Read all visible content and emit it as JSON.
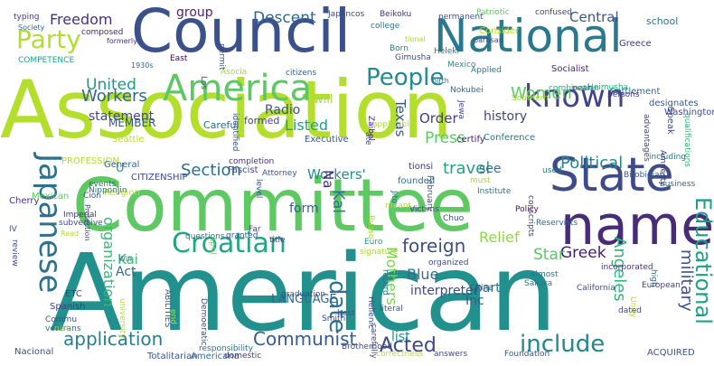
{
  "cloud": {
    "words": [
      {
        "text": "Association",
        "color": "#b4de2c"
      },
      {
        "text": "American",
        "color": "#22908c"
      },
      {
        "text": "Committee",
        "color": "#5ec962"
      },
      {
        "text": "Council",
        "color": "#3b518b"
      },
      {
        "text": "National",
        "color": "#2a788e"
      },
      {
        "text": "State",
        "color": "#3e4a89"
      },
      {
        "text": "name",
        "color": "#472c7a"
      },
      {
        "text": "America",
        "color": "#5cc863"
      },
      {
        "text": "known",
        "color": "#414487"
      },
      {
        "text": "Croatian",
        "color": "#21a685"
      },
      {
        "text": "Japanese",
        "color": "#2c718e"
      },
      {
        "text": "Party",
        "color": "#b0dd2f"
      },
      {
        "text": "People",
        "color": "#23898e"
      },
      {
        "text": "date",
        "color": "#2c728e"
      },
      {
        "text": "Educational",
        "color": "#1f9e89"
      },
      {
        "text": "application",
        "color": "#287d8e"
      },
      {
        "text": "include",
        "color": "#25858e"
      },
      {
        "text": "Communist",
        "color": "#365c8d"
      },
      {
        "text": "Acted",
        "color": "#3f4788"
      },
      {
        "text": "Political",
        "color": "#24868e"
      },
      {
        "text": "Section",
        "color": "#2d708e"
      },
      {
        "text": "travel",
        "color": "#20a386"
      },
      {
        "text": "foreign",
        "color": "#3d4e8a"
      },
      {
        "text": "United",
        "color": "#1f988b"
      },
      {
        "text": "Workers",
        "color": "#31678e"
      },
      {
        "text": "Freedom",
        "color": "#46337f"
      },
      {
        "text": "Women",
        "color": "#5ec962"
      },
      {
        "text": "Press",
        "color": "#5cc863"
      },
      {
        "text": "Angeles",
        "color": "#2fb47c"
      },
      {
        "text": "Mothers",
        "color": "#7ad151"
      },
      {
        "text": "military",
        "color": "#3b528b"
      },
      {
        "text": "organization",
        "color": "#38b977"
      },
      {
        "text": "Texas",
        "color": "#38588c"
      },
      {
        "text": "Central",
        "color": "#3a548c"
      },
      {
        "text": "Descent",
        "color": "#31678e"
      },
      {
        "text": "group",
        "color": "#482374"
      },
      {
        "text": "Order",
        "color": "#443a83"
      },
      {
        "text": "Radio",
        "color": "#3b528b"
      },
      {
        "text": "Listed",
        "color": "#1fa188"
      },
      {
        "text": "history",
        "color": "#404387"
      },
      {
        "text": "statement",
        "color": "#404688"
      },
      {
        "text": "Workers'",
        "color": "#218f8d"
      },
      {
        "text": "Relief",
        "color": "#8fd744"
      },
      {
        "text": "Greek",
        "color": "#481a6c"
      },
      {
        "text": "Star",
        "color": "#5ac864"
      },
      {
        "text": "Blue",
        "color": "#2e6f8e"
      },
      {
        "text": "Kai",
        "color": "#3aba76"
      },
      {
        "text": "Na",
        "color": "#472f7d"
      },
      {
        "text": "Act",
        "color": "#31688e"
      },
      {
        "text": "Kal",
        "color": "#2b748e"
      },
      {
        "text": "form",
        "color": "#34618d"
      },
      {
        "text": "part",
        "color": "#2e6e8e"
      },
      {
        "text": "Inc",
        "color": "#38598c"
      },
      {
        "text": "list",
        "color": "#1f958b"
      },
      {
        "text": "trade",
        "color": "#2c728e"
      },
      {
        "text": "see",
        "color": "#2e6f8e"
      },
      {
        "text": "interpreter",
        "color": "#3f4889"
      },
      {
        "text": "LANGUAGE",
        "color": "#31678e"
      },
      {
        "text": "U",
        "color": "#1f9a8a"
      },
      {
        "text": "will",
        "color": "#a5db36"
      },
      {
        "text": "MEMBER",
        "color": "#3a548c"
      },
      {
        "text": "Careful",
        "color": "#2e6e8e"
      },
      {
        "text": "formed",
        "color": "#414287"
      },
      {
        "text": "identified",
        "color": "#3b518b"
      },
      {
        "text": "Executive",
        "color": "#3a538b"
      },
      {
        "text": "certify",
        "color": "#482374"
      },
      {
        "text": "Conference",
        "color": "#2a778e"
      },
      {
        "text": "Speak",
        "color": "#3d4e8a"
      },
      {
        "text": "Washington",
        "color": "#3e4c8a"
      },
      {
        "text": "school",
        "color": "#2a768e"
      },
      {
        "text": "Settlement",
        "color": "#2f6b8e"
      },
      {
        "text": "Heimusha",
        "color": "#29af7f"
      },
      {
        "text": "Socialist",
        "color": "#481f70"
      },
      {
        "text": "designates",
        "color": "#365d8d"
      },
      {
        "text": "qualifications",
        "color": "#35b779"
      },
      {
        "text": "Greece",
        "color": "#453581"
      },
      {
        "text": "Consider",
        "color": "#b5de2b"
      },
      {
        "text": "college",
        "color": "#2c738e"
      },
      {
        "text": "Patriotic",
        "color": "#5ec962"
      },
      {
        "text": "confused",
        "color": "#424086"
      },
      {
        "text": "permanent",
        "color": "#3c4f8a"
      },
      {
        "text": "Beikoku",
        "color": "#46327e"
      },
      {
        "text": "Japancos",
        "color": "#3e4989"
      },
      {
        "text": "typing",
        "color": "#453781"
      },
      {
        "text": "Society",
        "color": "#31688e"
      },
      {
        "text": "composed",
        "color": "#482878"
      },
      {
        "text": "formerly",
        "color": "#46307e"
      },
      {
        "text": "COMPETENCE",
        "color": "#1fa088"
      },
      {
        "text": "East",
        "color": "#440154"
      },
      {
        "text": "Asocia",
        "color": "#a0da39"
      },
      {
        "text": "1930s",
        "color": "#31678e"
      },
      {
        "text": "citizens",
        "color": "#32648e"
      },
      {
        "text": "Gimusha",
        "color": "#3e4a89"
      },
      {
        "text": "Mexico",
        "color": "#21918c"
      },
      {
        "text": "Heleki",
        "color": "#2c728e"
      },
      {
        "text": "Born",
        "color": "#2a778e"
      },
      {
        "text": "tional",
        "color": "#a8db34"
      },
      {
        "text": "partisan",
        "color": "#3e4989"
      },
      {
        "text": "Applied",
        "color": "#2a768e"
      },
      {
        "text": "birth",
        "color": "#31688e"
      },
      {
        "text": "Nokubei",
        "color": "#306a8e"
      },
      {
        "text": "combination",
        "color": "#27ad81"
      },
      {
        "text": "pean",
        "color": "#3d4d8a"
      },
      {
        "text": "persons",
        "color": "#453882"
      },
      {
        "text": "Southern",
        "color": "#a0da39"
      },
      {
        "text": "Jewa",
        "color": "#3e4a89"
      },
      {
        "text": "Zaibel",
        "color": "#482475"
      },
      {
        "text": "Cherry",
        "color": "#46327e"
      },
      {
        "text": "Religion",
        "color": "#b8de29"
      },
      {
        "text": "Seattle",
        "color": "#b5de2b"
      },
      {
        "text": "Mexican",
        "color": "#5ec962"
      },
      {
        "text": "PROFESSION",
        "color": "#b0dd2f"
      },
      {
        "text": "General",
        "color": "#33638d"
      },
      {
        "text": "CITIZENSHIP",
        "color": "#3e4989"
      },
      {
        "text": "events",
        "color": "#2e6d8e"
      },
      {
        "text": "Fascist",
        "color": "#404588"
      },
      {
        "text": "Attorney",
        "color": "#3a548c"
      },
      {
        "text": "tionsi",
        "color": "#46337f"
      },
      {
        "text": "February",
        "color": "#3c508b"
      },
      {
        "text": "founded",
        "color": "#2d708e"
      },
      {
        "text": "Institute",
        "color": "#2e6f8e"
      },
      {
        "text": "must",
        "color": "#a2da37"
      },
      {
        "text": "used",
        "color": "#2a788e"
      },
      {
        "text": "including",
        "color": "#29798e"
      },
      {
        "text": "Amnesty",
        "color": "#46307e"
      },
      {
        "text": "Birobidjan",
        "color": "#365c8d"
      },
      {
        "text": "business",
        "color": "#33638d"
      },
      {
        "text": "Nipponjin",
        "color": "#2e6f8e"
      },
      {
        "text": "Cion",
        "color": "#39568c"
      },
      {
        "text": "Protection",
        "color": "#3c4f8a"
      },
      {
        "text": "questions",
        "color": "#2d718e"
      },
      {
        "text": "April",
        "color": "#7ad151"
      },
      {
        "text": "Far",
        "color": "#3f4788"
      },
      {
        "text": "granted",
        "color": "#3b528b"
      },
      {
        "text": "Russo",
        "color": "#a0da39"
      },
      {
        "text": "Victims",
        "color": "#3e4a89"
      },
      {
        "text": "Chuo",
        "color": "#3c4f8a"
      },
      {
        "text": "Reservists",
        "color": "#31688e"
      },
      {
        "text": "Policy",
        "color": "#471063"
      },
      {
        "text": "conscripts",
        "color": "#453581"
      },
      {
        "text": "Imperial",
        "color": "#46337f"
      },
      {
        "text": "subversive",
        "color": "#3d4e8a"
      },
      {
        "text": "review",
        "color": "#3b518b"
      },
      {
        "text": "Read",
        "color": "#b5de2b"
      },
      {
        "text": "Win",
        "color": "#2c728e"
      },
      {
        "text": "title",
        "color": "#443983"
      },
      {
        "text": "Euro",
        "color": "#1f9a8a"
      },
      {
        "text": "signature",
        "color": "#a2da37"
      },
      {
        "text": "record",
        "color": "#2a788e"
      },
      {
        "text": "organized",
        "color": "#3e4a89"
      },
      {
        "text": "China",
        "color": "#3a548c"
      },
      {
        "text": "almost",
        "color": "#2e6d8e"
      },
      {
        "text": "incorporated",
        "color": "#46337f"
      },
      {
        "text": "high",
        "color": "#2c728e"
      },
      {
        "text": "European",
        "color": "#414287"
      },
      {
        "text": "California",
        "color": "#3b518b"
      },
      {
        "text": "Sakura",
        "color": "#2c728e"
      },
      {
        "text": "ETC",
        "color": "#433e85"
      },
      {
        "text": "Spanish",
        "color": "#433e85"
      },
      {
        "text": "Demoeratic",
        "color": "#3e4a89"
      },
      {
        "text": "university",
        "color": "#b5de2b"
      },
      {
        "text": "ABILITIES",
        "color": "#3b528b"
      },
      {
        "text": "end",
        "color": "#b5de2b"
      },
      {
        "text": "graduation",
        "color": "#3d4d8a"
      },
      {
        "text": "Hellenic",
        "color": "#3e4c8a"
      },
      {
        "text": "literal",
        "color": "#3b528b"
      },
      {
        "text": "carefully",
        "color": "#3e4a89"
      },
      {
        "text": "Unity",
        "color": "#b5de2b"
      },
      {
        "text": "dated",
        "color": "#3e4a89"
      },
      {
        "text": "Commu",
        "color": "#3c4f8a"
      },
      {
        "text": "veterans",
        "color": "#2e6e8e"
      },
      {
        "text": "nist",
        "color": "#a5db36"
      },
      {
        "text": "Smith",
        "color": "#3e4989"
      },
      {
        "text": "best",
        "color": "#3b528b"
      },
      {
        "text": "Brotherhood",
        "color": "#3e4a89"
      },
      {
        "text": "Nacional",
        "color": "#3c4f8a"
      },
      {
        "text": "Totalitarian",
        "color": "#3a548c"
      },
      {
        "text": "Americana",
        "color": "#2e6e8e"
      },
      {
        "text": "responsibility",
        "color": "#2d718e"
      },
      {
        "text": "domestic",
        "color": "#453882"
      },
      {
        "text": "correctness",
        "color": "#b5de2b"
      },
      {
        "text": "answers",
        "color": "#3e4a89"
      },
      {
        "text": "Foundation",
        "color": "#3b518b"
      },
      {
        "text": "ACQUIRED",
        "color": "#3b528b"
      },
      {
        "text": "level",
        "color": "#3c508b"
      },
      {
        "text": "completion",
        "color": "#46337f"
      },
      {
        "text": "Los",
        "color": "#3e4c8a"
      },
      {
        "text": "permit",
        "color": "#3e4a89"
      },
      {
        "text": "IV",
        "color": "#3e4a89"
      },
      {
        "text": "meant",
        "color": "#b5de2b"
      },
      {
        "text": "Jito",
        "color": "#2c728e"
      },
      {
        "text": "applicable",
        "color": "#b5de2b"
      },
      {
        "text": "advantages",
        "color": "#3e4a89"
      },
      {
        "text": "ate",
        "color": "#3e4989"
      }
    ]
  }
}
